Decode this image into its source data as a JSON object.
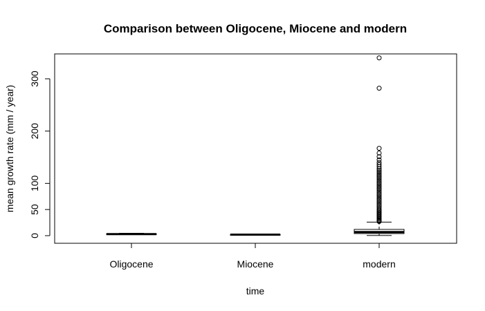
{
  "chart_data": {
    "type": "boxplot",
    "title": "Comparison between Oligocene, Miocene and modern",
    "xlabel": "time",
    "ylabel": "mean growth rate (mm / year)",
    "ylim": [
      -15,
      347
    ],
    "yticks": [
      0,
      50,
      100,
      200,
      300
    ],
    "ytick_labels": [
      "0",
      "50",
      "100",
      "200",
      "300"
    ],
    "categories": [
      "Oligocene",
      "Miocene",
      "modern"
    ],
    "boxes": [
      {
        "name": "Oligocene",
        "lower_whisker": 2.0,
        "q1": 2.6,
        "median": 3.0,
        "q3": 3.6,
        "upper_whisker": 4.6,
        "outliers": []
      },
      {
        "name": "Miocene",
        "lower_whisker": 1.5,
        "q1": 1.8,
        "median": 2.0,
        "q3": 2.3,
        "upper_whisker": 2.8,
        "outliers": []
      },
      {
        "name": "modern",
        "lower_whisker": 0.3,
        "q1": 4.0,
        "median": 7.0,
        "q3": 12.0,
        "upper_whisker": 26.0,
        "outliers": [
          340,
          282,
          167,
          158,
          151,
          145,
          140,
          136,
          132,
          128,
          125,
          122,
          119,
          116,
          113,
          110,
          107,
          104,
          101,
          98,
          95,
          92,
          89,
          86,
          83,
          80,
          77,
          74,
          71,
          68,
          65,
          62,
          59,
          56,
          53,
          50,
          48,
          46,
          44,
          42,
          40,
          38,
          36,
          34,
          32,
          30,
          29,
          28,
          27
        ]
      }
    ],
    "grid": false,
    "legend": "none"
  }
}
